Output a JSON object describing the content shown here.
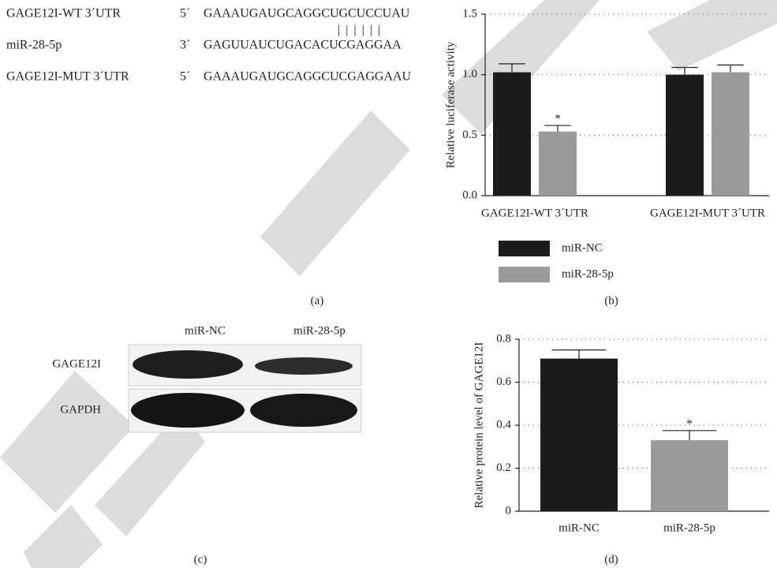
{
  "panel_a": {
    "rows": [
      {
        "name": "GAGE12I-WT 3´UTR",
        "end": "5´",
        "sequence": "GAAAUGAUGCAGGCUGCUCCUAU"
      },
      {
        "name": "miR-28-5p",
        "end": "3´",
        "sequence": "GAGUUAUCUGACACUCGAGGAA"
      },
      {
        "name": "GAGE12I-MUT 3´UTR",
        "end": "5´",
        "sequence": "GAAAUGAUGCAGGCUCGAGGAAU"
      }
    ],
    "pairing": "||||||",
    "label": "(a)"
  },
  "panel_b": {
    "label": "(b)"
  },
  "panel_c": {
    "columns": [
      "miR-NC",
      "miR-28-5p"
    ],
    "rows": [
      "GAGE12I",
      "GAPDH"
    ],
    "label": "(c)"
  },
  "panel_d": {
    "label": "(d)"
  },
  "chart_data": [
    {
      "type": "bar",
      "y_label": "Relative luciferase activity",
      "categories": [
        "GAGE12I-WT 3´UTR",
        "GAGE12I-MUT 3´UTR"
      ],
      "series": [
        {
          "name": "miR-NC",
          "color": "#1c1c1c",
          "values": [
            1.02,
            1.0
          ],
          "errors": [
            0.07,
            0.06
          ]
        },
        {
          "name": "miR-28-5p",
          "color": "#9a9a9a",
          "values": [
            0.53,
            1.02
          ],
          "errors": [
            0.05,
            0.06
          ]
        }
      ],
      "annotations": [
        "*"
      ],
      "ylim": [
        0,
        1.5
      ],
      "yticks": [
        {
          "value": 0,
          "label": "0.0"
        },
        0.5,
        {
          "value": 1,
          "label": "1.0"
        },
        1.5
      ],
      "grid": true,
      "legend": "bottom"
    },
    {
      "type": "bar",
      "y_label": "Relative protein level of GAGE12I",
      "categories": [
        "miR-NC",
        "miR-28-5p"
      ],
      "values": [
        0.71,
        0.33
      ],
      "errors": [
        0.04,
        0.045
      ],
      "colors": [
        "#1c1c1c",
        "#9a9a9a"
      ],
      "annotations": [
        "*"
      ],
      "ylim": [
        0,
        0.8
      ],
      "yticks": [
        0,
        0.2,
        0.4,
        0.6,
        0.8
      ],
      "grid": true
    }
  ]
}
